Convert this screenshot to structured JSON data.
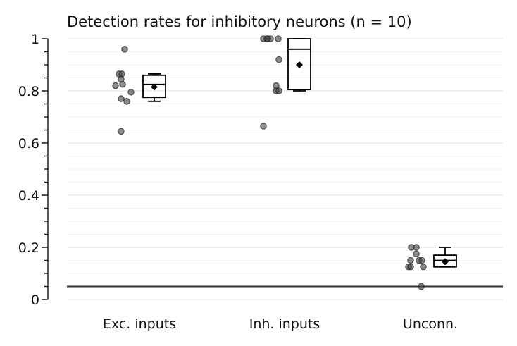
{
  "chart_data": {
    "type": "box",
    "title": "Detection rates for inhibitory neurons (n = 10)",
    "xlabel": "",
    "ylabel": "",
    "ylim": [
      0,
      1
    ],
    "y_major_ticks": [
      0,
      0.2,
      0.4,
      0.6,
      0.8,
      1
    ],
    "y_tick_labels": [
      "0",
      "0.2",
      "0.4",
      "0.6",
      "0.8",
      "1"
    ],
    "y_minor_step": 0.05,
    "grid": true,
    "reference_line": 0.05,
    "categories": [
      "Exc. inputs",
      "Inh. inputs",
      "Unconn."
    ],
    "points": [
      [
        0.96,
        0.865,
        0.865,
        0.845,
        0.825,
        0.82,
        0.795,
        0.77,
        0.76,
        0.645
      ],
      [
        1.0,
        1.0,
        1.0,
        1.0,
        1.0,
        0.92,
        0.82,
        0.8,
        0.8,
        0.665
      ],
      [
        0.2,
        0.2,
        0.175,
        0.15,
        0.15,
        0.15,
        0.125,
        0.125,
        0.125,
        0.05
      ]
    ],
    "boxes": [
      {
        "whisker_low": 0.76,
        "q1": 0.775,
        "median": 0.825,
        "q3": 0.86,
        "whisker_high": 0.865,
        "mean": 0.815
      },
      {
        "whisker_low": 0.8,
        "q1": 0.805,
        "median": 0.96,
        "q3": 1.0,
        "whisker_high": 1.0,
        "mean": 0.9
      },
      {
        "whisker_low": 0.125,
        "q1": 0.125,
        "median": 0.15,
        "q3": 0.17,
        "whisker_high": 0.2,
        "mean": 0.145
      }
    ]
  }
}
